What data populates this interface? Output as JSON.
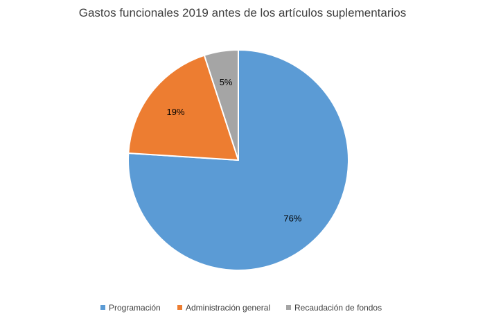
{
  "chart_data": {
    "type": "pie",
    "title": "Gastos funcionales 2019 antes de los artículos suplementarios",
    "categories": [
      "Programación",
      "Administración general",
      "Recaudación de fondos"
    ],
    "values": [
      76,
      19,
      5
    ],
    "labels": [
      "76%",
      "19%",
      "5%"
    ],
    "colors": [
      "#5B9BD5",
      "#ED7D31",
      "#A5A5A5"
    ],
    "start_angle_deg": 0,
    "direction": "clockwise",
    "legend_position": "bottom"
  }
}
